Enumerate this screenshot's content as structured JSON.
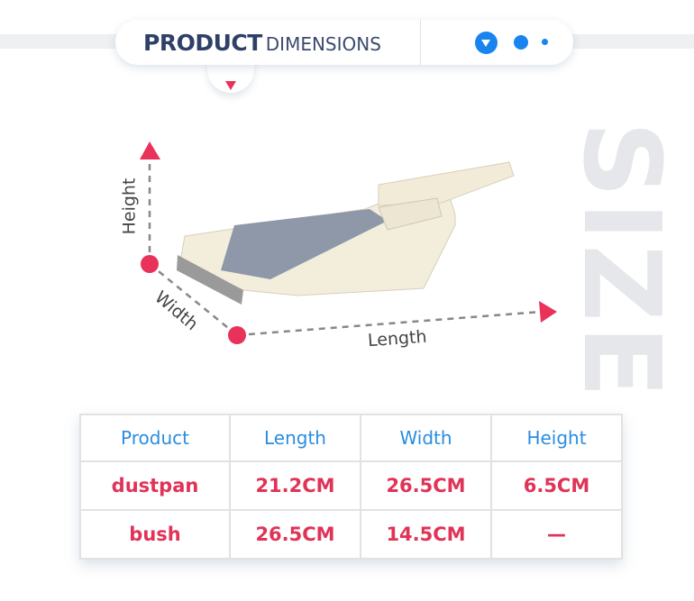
{
  "header": {
    "title_bold": "PRODUCT",
    "title_light": "DIMENSIONS",
    "icons": [
      "chevron-down-circle-icon",
      "dot-icon",
      "small-dot-icon"
    ]
  },
  "watermark": "SIZE",
  "diagram": {
    "height_label": "Height",
    "width_label": "Width",
    "length_label": "Length"
  },
  "colors": {
    "accent_red": "#e8325a",
    "accent_blue": "#1784f0",
    "title_navy": "#2f4068"
  },
  "table": {
    "headers": [
      "Product",
      "Length",
      "Width",
      "Height"
    ],
    "rows": [
      [
        "dustpan",
        "21.2CM",
        "26.5CM",
        "6.5CM"
      ],
      [
        "bush",
        "26.5CM",
        "14.5CM",
        "—"
      ]
    ]
  }
}
